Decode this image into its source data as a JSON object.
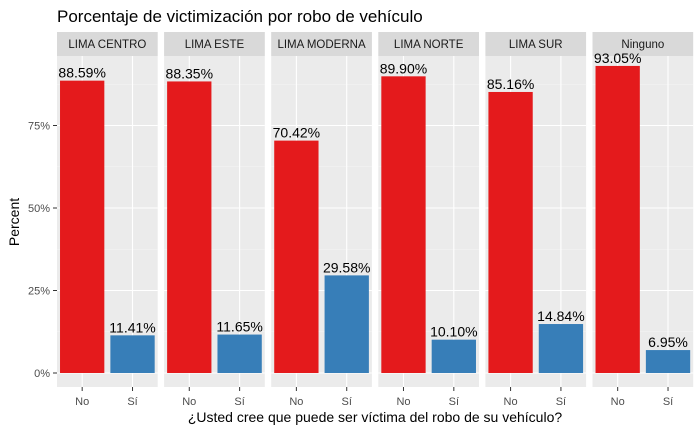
{
  "chart_data": {
    "type": "bar",
    "title": "Porcentaje de victimización por robo de vehículo",
    "xlabel": "¿Usted cree que puede ser víctima del robo de su vehículo?",
    "ylabel": "Percent",
    "ylim": [
      0,
      100
    ],
    "yticks": [
      0,
      25,
      50,
      75
    ],
    "ytick_labels": [
      "0%",
      "25%",
      "50%",
      "75%"
    ],
    "categories": [
      "No",
      "Sí"
    ],
    "colors": {
      "No": "#e41a1c",
      "Sí": "#377eb8"
    },
    "panel_background": "#ebebeb",
    "strip_background": "#d9d9d9",
    "grid": true,
    "facets": [
      {
        "name": "LIMA CENTRO",
        "values": [
          88.59,
          11.41
        ],
        "labels": [
          "88.59%",
          "11.41%"
        ]
      },
      {
        "name": "LIMA ESTE",
        "values": [
          88.35,
          11.65
        ],
        "labels": [
          "88.35%",
          "11.65%"
        ]
      },
      {
        "name": "LIMA MODERNA",
        "values": [
          70.42,
          29.58
        ],
        "labels": [
          "70.42%",
          "29.58%"
        ]
      },
      {
        "name": "LIMA NORTE",
        "values": [
          89.9,
          10.1
        ],
        "labels": [
          "89.90%",
          "10.10%"
        ]
      },
      {
        "name": "LIMA SUR",
        "values": [
          85.16,
          14.84
        ],
        "labels": [
          "85.16%",
          "14.84%"
        ]
      },
      {
        "name": "Ninguno",
        "values": [
          93.05,
          6.95
        ],
        "labels": [
          "93.05%",
          "6.95%"
        ]
      }
    ]
  }
}
